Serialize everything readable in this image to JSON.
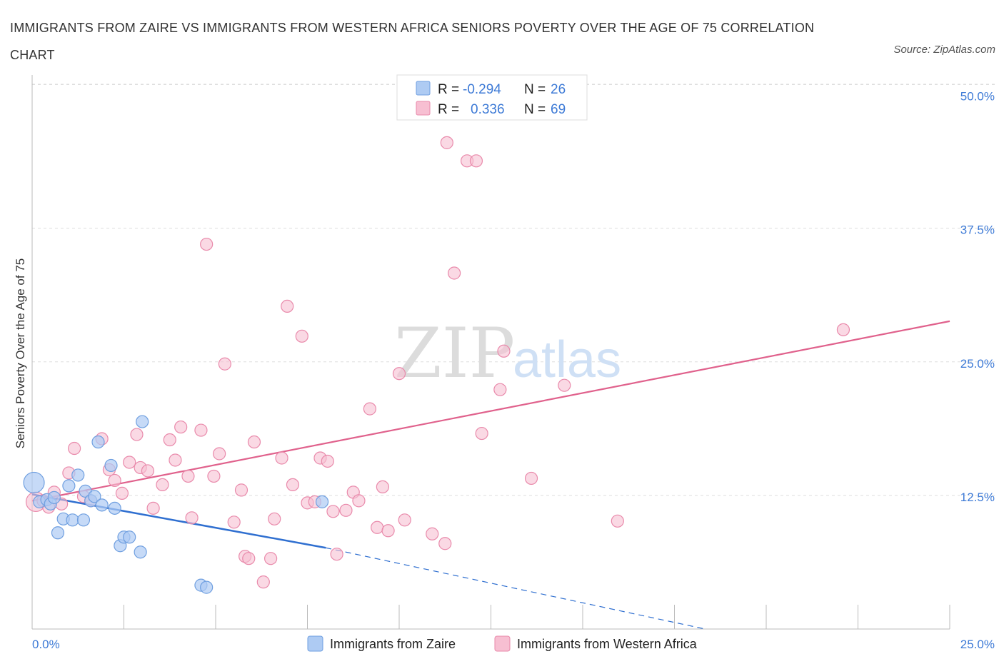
{
  "title": "IMMIGRANTS FROM ZAIRE VS IMMIGRANTS FROM WESTERN AFRICA SENIORS POVERTY OVER THE AGE OF 75 CORRELATION CHART",
  "source": "Source: ZipAtlas.com",
  "watermark": {
    "zip": "ZIP",
    "atlas": "atlas"
  },
  "colors": {
    "zaire_fill": "#aecbf3",
    "zaire_stroke": "#6f9fe0",
    "zaire_line": "#2f6fd0",
    "wafrica_fill": "#f7bfd2",
    "wafrica_stroke": "#e98aab",
    "wafrica_line": "#e0618c",
    "axis_text": "#3d7ad6",
    "grid": "#dddddd"
  },
  "legend": {
    "zaire": {
      "r_label": "R =",
      "r_value": "-0.294",
      "n_label": "N =",
      "n_value": "26"
    },
    "wafrica": {
      "r_label": "R =",
      "r_value": "0.336",
      "n_label": "N =",
      "n_value": "69"
    }
  },
  "bottom_legend": {
    "zaire": "Immigrants from Zaire",
    "wafrica": "Immigrants from Western Africa"
  },
  "chart_data": {
    "type": "scatter",
    "xlabel": "",
    "ylabel": "Seniors Poverty Over the Age of 75",
    "xlim": [
      0,
      25
    ],
    "ylim": [
      0,
      50
    ],
    "x_tick_labels": {
      "left": "0.0%",
      "right": "25.0%"
    },
    "y_ticks": [
      {
        "value": 12.5,
        "label": "12.5%"
      },
      {
        "value": 25.0,
        "label": "25.0%"
      },
      {
        "value": 37.5,
        "label": "37.5%"
      },
      {
        "value": 50.0,
        "label": "50.0%"
      }
    ],
    "grid": true,
    "series": [
      {
        "name": "Immigrants from Zaire",
        "r": -0.294,
        "n": 26,
        "trend": {
          "x0": 0,
          "y0": 12.6,
          "x1": 8.0,
          "y1": 7.6,
          "dashed_to_x": 25,
          "dashed_to_y": -4.9
        },
        "points": [
          {
            "x": 0.05,
            "y": 13.7,
            "s": 1.7
          },
          {
            "x": 0.2,
            "y": 11.9,
            "s": 1
          },
          {
            "x": 0.4,
            "y": 12.1,
            "s": 1
          },
          {
            "x": 0.5,
            "y": 11.7,
            "s": 1
          },
          {
            "x": 0.6,
            "y": 12.3,
            "s": 1
          },
          {
            "x": 0.7,
            "y": 9.0,
            "s": 1
          },
          {
            "x": 0.85,
            "y": 10.3,
            "s": 1
          },
          {
            "x": 1.0,
            "y": 13.4,
            "s": 1
          },
          {
            "x": 1.1,
            "y": 10.2,
            "s": 1
          },
          {
            "x": 1.25,
            "y": 14.4,
            "s": 1
          },
          {
            "x": 1.4,
            "y": 10.2,
            "s": 1
          },
          {
            "x": 1.45,
            "y": 12.9,
            "s": 1
          },
          {
            "x": 1.6,
            "y": 12.0,
            "s": 1
          },
          {
            "x": 1.7,
            "y": 12.4,
            "s": 1
          },
          {
            "x": 1.8,
            "y": 17.5,
            "s": 1
          },
          {
            "x": 1.9,
            "y": 11.6,
            "s": 1
          },
          {
            "x": 2.15,
            "y": 15.3,
            "s": 1
          },
          {
            "x": 2.25,
            "y": 11.3,
            "s": 1
          },
          {
            "x": 2.4,
            "y": 7.8,
            "s": 1
          },
          {
            "x": 2.5,
            "y": 8.6,
            "s": 1
          },
          {
            "x": 2.65,
            "y": 8.6,
            "s": 1
          },
          {
            "x": 2.95,
            "y": 7.2,
            "s": 1
          },
          {
            "x": 3.0,
            "y": 19.4,
            "s": 1
          },
          {
            "x": 4.6,
            "y": 4.1,
            "s": 1
          },
          {
            "x": 4.75,
            "y": 3.9,
            "s": 1
          },
          {
            "x": 7.9,
            "y": 11.9,
            "s": 1
          }
        ]
      },
      {
        "name": "Immigrants from Western Africa",
        "r": 0.336,
        "n": 69,
        "trend": {
          "x0": 0,
          "y0": 12.0,
          "x1": 25,
          "y1": 28.8
        },
        "points": [
          {
            "x": 0.1,
            "y": 11.9,
            "s": 1.6
          },
          {
            "x": 0.3,
            "y": 12.0,
            "s": 1
          },
          {
            "x": 0.45,
            "y": 11.4,
            "s": 1
          },
          {
            "x": 0.6,
            "y": 12.8,
            "s": 1
          },
          {
            "x": 0.8,
            "y": 11.7,
            "s": 1
          },
          {
            "x": 1.0,
            "y": 14.6,
            "s": 1
          },
          {
            "x": 1.15,
            "y": 16.9,
            "s": 1
          },
          {
            "x": 1.4,
            "y": 12.4,
            "s": 1
          },
          {
            "x": 1.6,
            "y": 12.0,
            "s": 1
          },
          {
            "x": 1.9,
            "y": 17.8,
            "s": 1
          },
          {
            "x": 2.1,
            "y": 14.9,
            "s": 1
          },
          {
            "x": 2.25,
            "y": 13.9,
            "s": 1
          },
          {
            "x": 2.45,
            "y": 12.7,
            "s": 1
          },
          {
            "x": 2.65,
            "y": 15.6,
            "s": 1
          },
          {
            "x": 2.85,
            "y": 18.2,
            "s": 1
          },
          {
            "x": 2.95,
            "y": 15.1,
            "s": 1
          },
          {
            "x": 3.15,
            "y": 14.8,
            "s": 1
          },
          {
            "x": 3.3,
            "y": 11.3,
            "s": 1
          },
          {
            "x": 3.55,
            "y": 13.5,
            "s": 1
          },
          {
            "x": 3.75,
            "y": 17.7,
            "s": 1
          },
          {
            "x": 3.9,
            "y": 15.8,
            "s": 1
          },
          {
            "x": 4.05,
            "y": 18.9,
            "s": 1
          },
          {
            "x": 4.25,
            "y": 14.3,
            "s": 1
          },
          {
            "x": 4.35,
            "y": 10.4,
            "s": 1
          },
          {
            "x": 4.6,
            "y": 18.6,
            "s": 1
          },
          {
            "x": 4.75,
            "y": 36.0,
            "s": 1
          },
          {
            "x": 4.95,
            "y": 14.3,
            "s": 1
          },
          {
            "x": 5.1,
            "y": 16.4,
            "s": 1
          },
          {
            "x": 5.25,
            "y": 24.8,
            "s": 1
          },
          {
            "x": 5.5,
            "y": 10.0,
            "s": 1
          },
          {
            "x": 5.7,
            "y": 13.0,
            "s": 1
          },
          {
            "x": 5.8,
            "y": 6.8,
            "s": 1
          },
          {
            "x": 6.05,
            "y": 17.5,
            "s": 1
          },
          {
            "x": 6.3,
            "y": 4.4,
            "s": 1
          },
          {
            "x": 6.5,
            "y": 6.6,
            "s": 1
          },
          {
            "x": 6.6,
            "y": 10.3,
            "s": 1
          },
          {
            "x": 6.8,
            "y": 16.0,
            "s": 1
          },
          {
            "x": 6.95,
            "y": 30.2,
            "s": 1
          },
          {
            "x": 7.1,
            "y": 13.5,
            "s": 1
          },
          {
            "x": 7.35,
            "y": 27.4,
            "s": 1
          },
          {
            "x": 7.5,
            "y": 11.8,
            "s": 1
          },
          {
            "x": 7.7,
            "y": 11.9,
            "s": 1
          },
          {
            "x": 7.85,
            "y": 16.0,
            "s": 1
          },
          {
            "x": 8.05,
            "y": 15.7,
            "s": 1
          },
          {
            "x": 8.2,
            "y": 11.0,
            "s": 1
          },
          {
            "x": 8.3,
            "y": 7.0,
            "s": 1
          },
          {
            "x": 8.55,
            "y": 11.1,
            "s": 1
          },
          {
            "x": 8.75,
            "y": 12.8,
            "s": 1
          },
          {
            "x": 8.9,
            "y": 12.0,
            "s": 1
          },
          {
            "x": 9.2,
            "y": 20.6,
            "s": 1
          },
          {
            "x": 9.4,
            "y": 9.5,
            "s": 1
          },
          {
            "x": 9.55,
            "y": 13.3,
            "s": 1
          },
          {
            "x": 9.7,
            "y": 9.2,
            "s": 1
          },
          {
            "x": 10.0,
            "y": 23.9,
            "s": 1
          },
          {
            "x": 10.15,
            "y": 10.2,
            "s": 1
          },
          {
            "x": 10.9,
            "y": 8.9,
            "s": 1
          },
          {
            "x": 11.25,
            "y": 8.0,
            "s": 1
          },
          {
            "x": 11.3,
            "y": 45.5,
            "s": 1
          },
          {
            "x": 11.5,
            "y": 33.3,
            "s": 1
          },
          {
            "x": 11.85,
            "y": 43.8,
            "s": 1
          },
          {
            "x": 12.1,
            "y": 43.8,
            "s": 1
          },
          {
            "x": 12.25,
            "y": 18.3,
            "s": 1
          },
          {
            "x": 12.75,
            "y": 22.4,
            "s": 1
          },
          {
            "x": 12.85,
            "y": 26.0,
            "s": 1
          },
          {
            "x": 13.6,
            "y": 14.1,
            "s": 1
          },
          {
            "x": 14.5,
            "y": 22.8,
            "s": 1
          },
          {
            "x": 15.95,
            "y": 10.1,
            "s": 1
          },
          {
            "x": 22.1,
            "y": 28.0,
            "s": 1
          },
          {
            "x": 5.9,
            "y": 6.6,
            "s": 1
          }
        ]
      }
    ]
  }
}
